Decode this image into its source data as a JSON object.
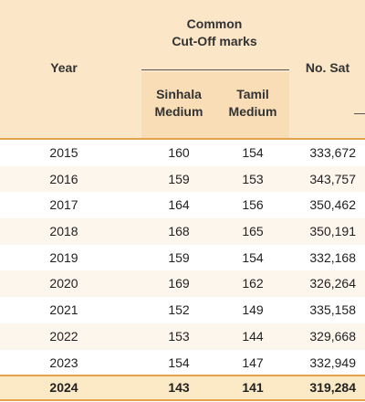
{
  "table": {
    "header": {
      "year": "Year",
      "common_line1": "Common",
      "common_line2": "Cut-Off marks",
      "sinhala_line1": "Sinhala",
      "sinhala_line2": "Medium",
      "tamil_line1": "Tamil",
      "tamil_line2": "Medium",
      "no_sat": "No. Sat"
    },
    "rows": [
      {
        "year": "2015",
        "sinhala": "160",
        "tamil": "154",
        "no_sat": "333,672"
      },
      {
        "year": "2016",
        "sinhala": "159",
        "tamil": "153",
        "no_sat": "343,757"
      },
      {
        "year": "2017",
        "sinhala": "164",
        "tamil": "156",
        "no_sat": "350,462"
      },
      {
        "year": "2018",
        "sinhala": "168",
        "tamil": "165",
        "no_sat": "350,191"
      },
      {
        "year": "2019",
        "sinhala": "159",
        "tamil": "154",
        "no_sat": "332,168"
      },
      {
        "year": "2020",
        "sinhala": "169",
        "tamil": "162",
        "no_sat": "326,264"
      },
      {
        "year": "2021",
        "sinhala": "152",
        "tamil": "149",
        "no_sat": "335,158"
      },
      {
        "year": "2022",
        "sinhala": "153",
        "tamil": "144",
        "no_sat": "329,668"
      },
      {
        "year": "2023",
        "sinhala": "154",
        "tamil": "147",
        "no_sat": "332,949"
      }
    ],
    "highlight": {
      "year": "2024",
      "sinhala": "143",
      "tamil": "141",
      "no_sat": "319,284"
    }
  },
  "colors": {
    "header_background": "#fbe6c8",
    "subheader_background": "#f9ddb6",
    "accent_rule": "#e2a34b",
    "highlight_background": "#fce9c6"
  }
}
